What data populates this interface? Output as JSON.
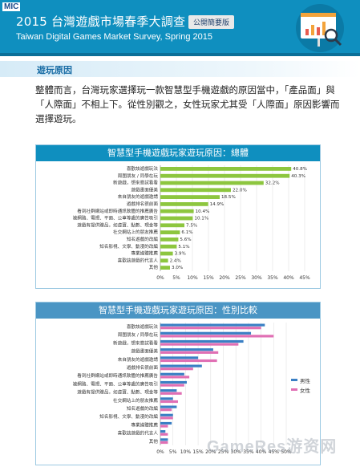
{
  "header": {
    "logo": "MIC",
    "title": "2015 台灣遊戲市場春季大調查",
    "badge": "公開簡要版",
    "subtitle": "Taiwan Digital Games Market Survey, Spring 2015",
    "colors": {
      "band": "#0f8fbf",
      "accent": "#0a6f98"
    },
    "icon": "presentation-chart-icon"
  },
  "section": {
    "title": "遊玩原因"
  },
  "paragraph": "整體而言，台灣玩家選擇玩一款智慧型手機遊戲的原因當中，「產品面」與「人際面」不相上下。從性別觀之，女性玩家尤其受「人際面」原因影響而選擇遊玩。",
  "watermark": "GameRes游资网",
  "chart_data": [
    {
      "type": "bar",
      "orientation": "horizontal",
      "title": "智慧型手機遊戲玩家遊玩原因：總體",
      "categories": [
        "喜歡該遊戲玩法",
        "周圍朋友 / 同學在玩",
        "新遊戲，想來嘗試看看",
        "遊戲畫面優美",
        "來自朋友的遊戲邀請",
        "遊戲排名很前面",
        "看到社群網站或即時通訊軟體的推薦廣告",
        "被網路、電視、平面、公車等處的廣告吸引",
        "遊戲有提供贈品，如虛寶、點數、現金等",
        "社交網站上的朋友推薦",
        "知名遊戲的改編",
        "知名影視、文學、動漫的改編",
        "專業媒體推薦",
        "喜歡該遊戲的代言人",
        "其他"
      ],
      "values": [
        40.8,
        40.3,
        32.2,
        22.0,
        18.5,
        14.9,
        10.4,
        10.1,
        7.5,
        6.1,
        5.6,
        5.1,
        3.9,
        2.4,
        3.0
      ],
      "value_labels": [
        "40.8%",
        "40.3%",
        "32.2%",
        "22.0%",
        "18.5%",
        "14.9%",
        "10.4%",
        "10.1%",
        "7.5%",
        "6.1%",
        "5.6%",
        "5.1%",
        "3.9%",
        "2.4%",
        "3.0%"
      ],
      "x_ticks": [
        "0%",
        "5%",
        "10%",
        "15%",
        "20%",
        "25%",
        "30%",
        "35%",
        "40%",
        "45%"
      ],
      "xlim": [
        0,
        45
      ],
      "color": "#8dc63f"
    },
    {
      "type": "bar",
      "orientation": "horizontal",
      "title": "智慧型手機遊戲玩家遊玩原因：性別比較",
      "categories": [
        "喜歡該遊戲玩法",
        "周圍朋友 / 同學在玩",
        "新遊戲，想來嘗試看看",
        "遊戲畫面優美",
        "來自朋友的遊戲邀請",
        "遊戲排名很前面",
        "看到社群網站或即時通訊軟體的推薦廣告",
        "被網路、電視、平面、公車等處的廣告吸引",
        "遊戲有提供贈品，如虛寶、點數、現金等",
        "社交網站上的朋友推薦",
        "知名遊戲的改編",
        "知名影視、文學、動漫的改編",
        "專業媒體推薦",
        "喜歡該遊戲的代言人",
        "其他"
      ],
      "series": [
        {
          "name": "男性",
          "color": "#3a7fc4",
          "values": [
            41.5,
            36.0,
            33.0,
            21.0,
            15.0,
            16.5,
            9.5,
            10.5,
            6.5,
            5.0,
            6.5,
            5.0,
            4.5,
            2.0,
            3.0
          ]
        },
        {
          "name": "女性",
          "color": "#e06fb4",
          "values": [
            40.0,
            45.0,
            31.0,
            23.0,
            22.5,
            13.0,
            11.5,
            9.5,
            8.5,
            7.0,
            4.5,
            5.0,
            3.0,
            3.0,
            3.0
          ]
        }
      ],
      "x_ticks": [
        "0%",
        "5%",
        "10%",
        "15%",
        "20%",
        "25%",
        "30%",
        "35%",
        "40%",
        "45%",
        "50%"
      ],
      "xlim": [
        0,
        50
      ],
      "legend_position": "right"
    }
  ]
}
